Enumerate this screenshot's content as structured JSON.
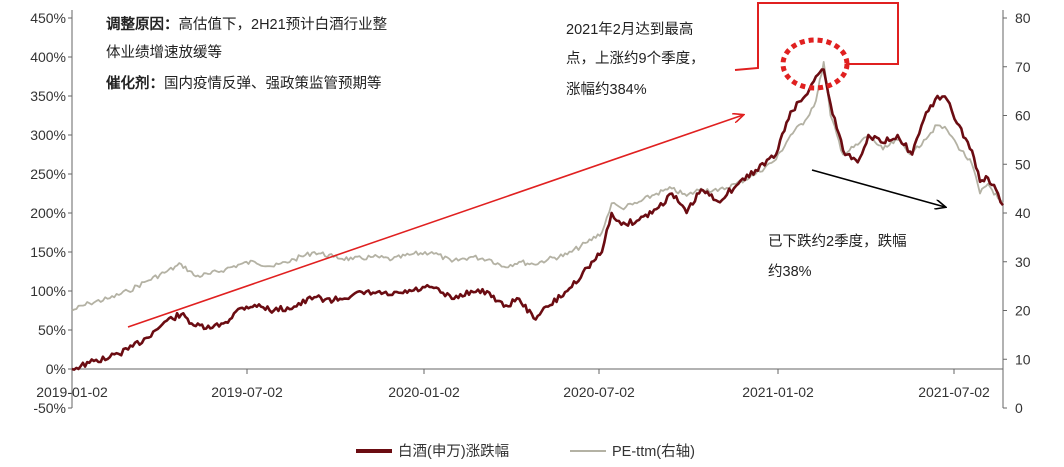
{
  "chart_data": {
    "type": "line",
    "x_ticks": [
      "2019-01-02",
      "2019-07-02",
      "2020-01-02",
      "2020-07-02",
      "2021-01-02",
      "2021-07-02"
    ],
    "y_left": {
      "ticks": [
        "450%",
        "400%",
        "350%",
        "300%",
        "250%",
        "200%",
        "150%",
        "100%",
        "50%",
        "0%",
        "-50%"
      ],
      "ylim": [
        -50,
        450
      ]
    },
    "y_right": {
      "ticks": [
        "80",
        "70",
        "60",
        "50",
        "40",
        "30",
        "20",
        "10",
        "0"
      ],
      "ylim": [
        0,
        80
      ]
    },
    "series": [
      {
        "name": "白酒(申万)涨跌幅",
        "axis": "left",
        "color": "#6b0c12",
        "points": [
          [
            "2019-01-02",
            0
          ],
          [
            "2019-01-20",
            8
          ],
          [
            "2019-02-10",
            15
          ],
          [
            "2019-03-01",
            25
          ],
          [
            "2019-03-20",
            40
          ],
          [
            "2019-04-10",
            62
          ],
          [
            "2019-04-25",
            70
          ],
          [
            "2019-05-10",
            55
          ],
          [
            "2019-05-25",
            52
          ],
          [
            "2019-06-10",
            60
          ],
          [
            "2019-06-25",
            78
          ],
          [
            "2019-07-10",
            82
          ],
          [
            "2019-07-30",
            75
          ],
          [
            "2019-08-20",
            80
          ],
          [
            "2019-09-10",
            92
          ],
          [
            "2019-09-30",
            88
          ],
          [
            "2019-10-20",
            95
          ],
          [
            "2019-11-10",
            98
          ],
          [
            "2019-11-30",
            95
          ],
          [
            "2019-12-20",
            100
          ],
          [
            "2020-01-10",
            105
          ],
          [
            "2020-01-31",
            90
          ],
          [
            "2020-02-20",
            100
          ],
          [
            "2020-03-10",
            98
          ],
          [
            "2020-03-25",
            80
          ],
          [
            "2020-04-10",
            90
          ],
          [
            "2020-04-25",
            65
          ],
          [
            "2020-05-10",
            80
          ],
          [
            "2020-05-30",
            100
          ],
          [
            "2020-06-20",
            130
          ],
          [
            "2020-07-05",
            150
          ],
          [
            "2020-07-15",
            200
          ],
          [
            "2020-07-25",
            185
          ],
          [
            "2020-08-10",
            190
          ],
          [
            "2020-08-30",
            205
          ],
          [
            "2020-09-15",
            225
          ],
          [
            "2020-09-30",
            200
          ],
          [
            "2020-10-15",
            230
          ],
          [
            "2020-11-01",
            215
          ],
          [
            "2020-11-20",
            235
          ],
          [
            "2020-12-10",
            255
          ],
          [
            "2020-12-31",
            275
          ],
          [
            "2021-01-15",
            330
          ],
          [
            "2021-01-30",
            350
          ],
          [
            "2021-02-10",
            375
          ],
          [
            "2021-02-18",
            384
          ],
          [
            "2021-02-25",
            340
          ],
          [
            "2021-03-10",
            280
          ],
          [
            "2021-03-25",
            265
          ],
          [
            "2021-04-05",
            300
          ],
          [
            "2021-04-20",
            290
          ],
          [
            "2021-05-05",
            300
          ],
          [
            "2021-05-20",
            275
          ],
          [
            "2021-06-01",
            320
          ],
          [
            "2021-06-15",
            350
          ],
          [
            "2021-06-25",
            345
          ],
          [
            "2021-07-05",
            315
          ],
          [
            "2021-07-20",
            280
          ],
          [
            "2021-07-28",
            240
          ],
          [
            "2021-08-05",
            245
          ],
          [
            "2021-08-15",
            225
          ],
          [
            "2021-08-20",
            210
          ]
        ]
      },
      {
        "name": "PE-ttm(右轴)",
        "axis": "right",
        "color": "#b4b2a4",
        "points": [
          [
            "2019-01-02",
            20
          ],
          [
            "2019-01-20",
            21.5
          ],
          [
            "2019-02-10",
            22.5
          ],
          [
            "2019-03-01",
            24
          ],
          [
            "2019-03-20",
            26
          ],
          [
            "2019-04-10",
            28
          ],
          [
            "2019-04-25",
            29.5
          ],
          [
            "2019-05-10",
            27
          ],
          [
            "2019-05-25",
            27.5
          ],
          [
            "2019-06-10",
            28.5
          ],
          [
            "2019-06-25",
            29.5
          ],
          [
            "2019-07-10",
            30
          ],
          [
            "2019-07-30",
            29
          ],
          [
            "2019-08-20",
            30.5
          ],
          [
            "2019-09-10",
            32
          ],
          [
            "2019-09-30",
            31
          ],
          [
            "2019-10-20",
            30.5
          ],
          [
            "2019-11-10",
            31
          ],
          [
            "2019-11-30",
            30.5
          ],
          [
            "2019-12-20",
            31.5
          ],
          [
            "2020-01-10",
            32
          ],
          [
            "2020-01-31",
            30
          ],
          [
            "2020-02-20",
            31
          ],
          [
            "2020-03-10",
            30.5
          ],
          [
            "2020-03-25",
            29
          ],
          [
            "2020-04-10",
            30
          ],
          [
            "2020-04-25",
            29.5
          ],
          [
            "2020-05-10",
            30.5
          ],
          [
            "2020-05-30",
            31.5
          ],
          [
            "2020-06-20",
            34
          ],
          [
            "2020-07-05",
            36
          ],
          [
            "2020-07-15",
            42
          ],
          [
            "2020-07-25",
            41
          ],
          [
            "2020-08-10",
            42
          ],
          [
            "2020-08-30",
            44
          ],
          [
            "2020-09-15",
            45
          ],
          [
            "2020-09-30",
            43.5
          ],
          [
            "2020-10-15",
            45
          ],
          [
            "2020-11-01",
            44.5
          ],
          [
            "2020-11-20",
            46
          ],
          [
            "2020-12-10",
            48
          ],
          [
            "2020-12-31",
            51
          ],
          [
            "2021-01-15",
            56
          ],
          [
            "2021-01-30",
            59
          ],
          [
            "2021-02-10",
            63
          ],
          [
            "2021-02-18",
            71
          ],
          [
            "2021-02-25",
            60
          ],
          [
            "2021-03-10",
            52
          ],
          [
            "2021-03-25",
            54
          ],
          [
            "2021-04-05",
            56
          ],
          [
            "2021-04-20",
            53
          ],
          [
            "2021-05-05",
            55
          ],
          [
            "2021-05-20",
            52
          ],
          [
            "2021-06-01",
            55
          ],
          [
            "2021-06-15",
            58
          ],
          [
            "2021-06-25",
            57
          ],
          [
            "2021-07-05",
            54
          ],
          [
            "2021-07-20",
            50
          ],
          [
            "2021-07-28",
            44
          ],
          [
            "2021-08-05",
            46
          ],
          [
            "2021-08-15",
            43
          ],
          [
            "2021-08-20",
            42
          ]
        ]
      }
    ],
    "legend_position": "bottom-center",
    "grid": false
  },
  "annotations": {
    "reason_title": "调整原因：",
    "reason_line1": "高估值下，2H21预计白酒行业整",
    "reason_line2": "体业绩增速放缓等",
    "catalyst_title": "催化剂：",
    "catalyst_text": "国内疫情反弹、强政策监管预期等",
    "peak_line1": "2021年2月达到最高",
    "peak_line2": "点，上涨约9个季度，",
    "peak_line3": "涨幅约384%",
    "drop_line1": "已下跌约2季度，跌幅",
    "drop_line2": "约38%"
  },
  "colors": {
    "arrow_up": "#e02020",
    "arrow_down": "#000000",
    "callout": "#e02020"
  }
}
